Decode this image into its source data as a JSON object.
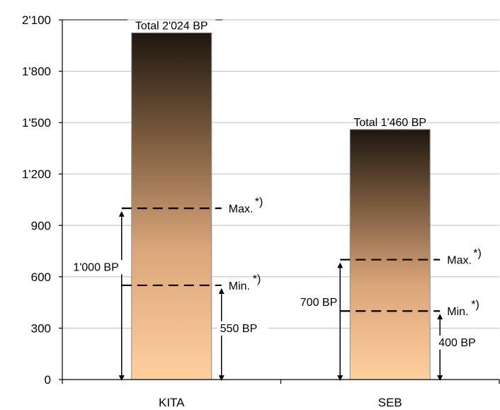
{
  "chart_data": {
    "type": "bar",
    "title": "",
    "xlabel": "",
    "ylabel": "",
    "ylim": [
      0,
      2100
    ],
    "yticks": [
      0,
      300,
      600,
      900,
      1200,
      1500,
      1800,
      2100
    ],
    "ytick_labels": [
      "0",
      "300",
      "600",
      "900",
      "1'200",
      "1'500",
      "1'800",
      "2'100"
    ],
    "grid": true,
    "categories": [
      "KITA",
      "SEB"
    ],
    "values": [
      2024,
      1460
    ],
    "bar_gradient": {
      "top": "#1e1710",
      "bottom": "#ffcf9e"
    },
    "annotations": [
      {
        "category": "KITA",
        "total_label": "Total 2'024 BP",
        "max": {
          "value": 1000,
          "label": "Max.",
          "sup": "*)",
          "range_label": "1'000 BP"
        },
        "min": {
          "value": 550,
          "label": "Min.",
          "sup": "*)",
          "range_label": "550 BP"
        }
      },
      {
        "category": "SEB",
        "total_label": "Total 1'460 BP",
        "max": {
          "value": 700,
          "label": "Max.",
          "sup": "*)",
          "range_label": "700 BP"
        },
        "min": {
          "value": 400,
          "label": "Min.",
          "sup": "*)",
          "range_label": "400 BP"
        }
      }
    ]
  }
}
